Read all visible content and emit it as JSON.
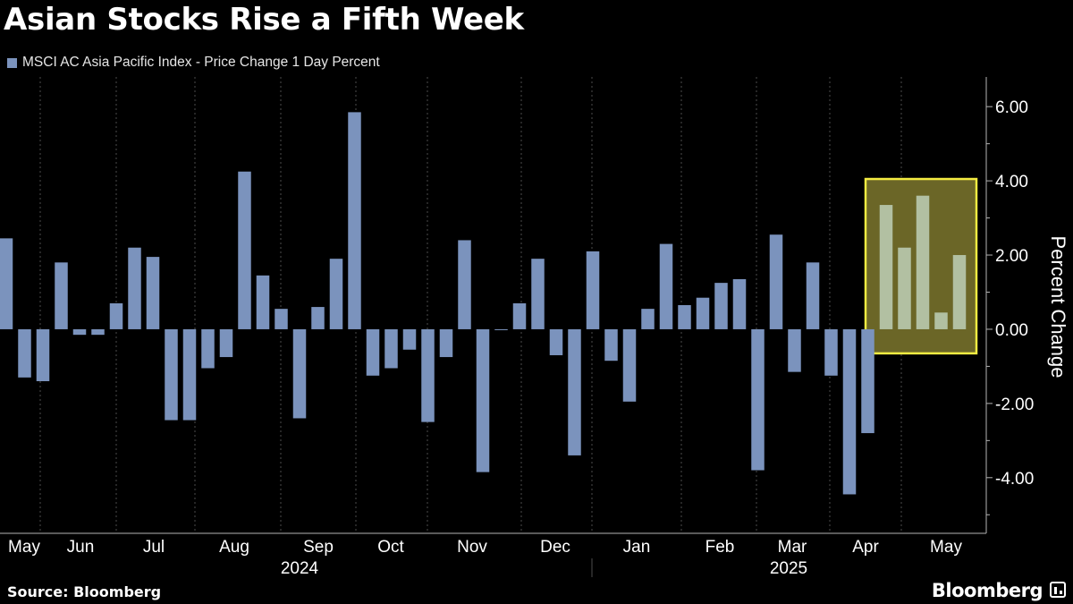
{
  "title": "Asian Stocks Rise a Fifth Week",
  "legend": {
    "label": "MSCI AC Asia Pacific Index - Price Change 1 Day Percent",
    "color": "#7b93bd"
  },
  "source": "Source: Bloomberg",
  "brand": "Bloomberg",
  "colors": {
    "bar": "#7b93bd",
    "bar_highlight": "#b2c0a2",
    "highlight_fill": "#6b6627",
    "highlight_stroke": "#f4ec42",
    "grid": "#4d4d4d",
    "axis": "#b3b3b3"
  },
  "chart_data": {
    "type": "bar",
    "ylabel": "Percent Change",
    "ylim": [
      -5.5,
      6.8
    ],
    "yticks": [
      6,
      4,
      2,
      0,
      -2,
      -4
    ],
    "ytick_labels": [
      "6.00",
      "4.00",
      "2.00",
      "0.00",
      "-2.00",
      "-4.00"
    ],
    "grid": "vertical dashed lines at month boundaries",
    "month_labels": [
      "May",
      "Jun",
      "Jul",
      "Aug",
      "Sep",
      "Oct",
      "Nov",
      "Dec",
      "Jan",
      "Feb",
      "Mar",
      "Apr",
      "May"
    ],
    "year_labels": [
      "2024",
      "2025"
    ],
    "highlight": {
      "from_index": 48,
      "to_index": 53,
      "ymin": -0.65,
      "ymax": 4.05
    },
    "values": [
      2.45,
      -1.3,
      -1.4,
      1.8,
      -0.15,
      -0.15,
      0.7,
      2.2,
      1.95,
      -2.45,
      -2.45,
      -1.05,
      -0.75,
      4.25,
      1.45,
      0.55,
      -2.4,
      0.6,
      1.9,
      5.85,
      -1.25,
      -1.05,
      -0.55,
      -2.5,
      -0.75,
      2.4,
      -3.85,
      0.0,
      0.7,
      1.9,
      -0.7,
      -3.4,
      2.1,
      -0.85,
      -1.95,
      0.55,
      2.3,
      0.65,
      0.85,
      1.25,
      1.35,
      -3.8,
      2.55,
      -1.15,
      1.8,
      -1.25,
      -4.45,
      -2.8,
      3.35,
      2.2,
      3.6,
      0.45,
      2.0
    ]
  }
}
